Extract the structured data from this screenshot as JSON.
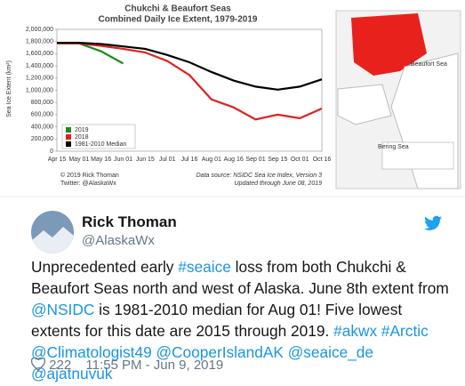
{
  "chart_data": {
    "type": "line",
    "title": "Chukchi & Beaufort Seas",
    "subtitle": "Combined Daily Ice Extent, 1979-2019",
    "y_label": "Sea Ice Extent (km²)",
    "categories": [
      "Apr 15",
      "May 01",
      "May 16",
      "Jun 01",
      "Jun 15",
      "Jul 01",
      "Jul 16",
      "Aug 01",
      "Aug 16",
      "Sep 01",
      "Sep 15",
      "Oct 01",
      "Oct 16"
    ],
    "series": [
      {
        "name": "2019",
        "color": "#1e8a1e",
        "values": [
          1770000,
          1770000,
          1640000,
          1440000,
          null,
          null,
          null,
          null,
          null,
          null,
          null,
          null,
          null
        ]
      },
      {
        "name": "2018",
        "color": "#e02020",
        "values": [
          1770000,
          1770000,
          1730000,
          1680000,
          1620000,
          1480000,
          1250000,
          850000,
          720000,
          520000,
          600000,
          540000,
          700000
        ]
      },
      {
        "name": "1981-2010 Median",
        "color": "#000000",
        "values": [
          1780000,
          1780000,
          1760000,
          1720000,
          1680000,
          1580000,
          1460000,
          1300000,
          1160000,
          1060000,
          1010000,
          1060000,
          1180000
        ]
      }
    ],
    "ylim": [
      0,
      2000000
    ],
    "yticks": [
      0,
      {
        "value": 200000,
        "label": "200,000"
      },
      {
        "value": 400000,
        "label": "400,000"
      },
      {
        "value": 600000,
        "label": "600,000"
      },
      {
        "value": 800000,
        "label": "800,000"
      },
      {
        "value": 1000000,
        "label": "1,000,000"
      },
      {
        "value": 1200000,
        "label": "1,200,000"
      },
      {
        "value": 1400000,
        "label": "1,400,000"
      },
      {
        "value": 1600000,
        "label": "1,600,000"
      },
      {
        "value": 1800000,
        "label": "1,800,000"
      },
      {
        "value": 2000000,
        "label": "2,000,000"
      }
    ],
    "credit": [
      "© 2019 Rick Thoman",
      "Twitter: @AlaskaWx"
    ],
    "source": [
      "Data source: NSIDC Sea Ice Index, Version 3",
      "Updated through June 08, 2019"
    ]
  },
  "map": {
    "labels": [
      "Beaufort Sea",
      "Bering Sea"
    ]
  },
  "tweet": {
    "name": "Rick Thoman",
    "handle": "@AlaskaWx",
    "body": [
      {
        "text": "Unprecedented early ",
        "link": false
      },
      {
        "text": "#seaice",
        "link": true
      },
      {
        "text": " loss from both Chukchi & Beaufort Seas north and west of Alaska. June 8th extent from ",
        "link": false
      },
      {
        "text": "@NSIDC",
        "link": true
      },
      {
        "text": " is 1981-2010 median for Aug 01! Five lowest extents for this date are 2015 through 2019. ",
        "link": false
      },
      {
        "text": "#akwx",
        "link": true
      },
      {
        "text": " ",
        "link": false
      },
      {
        "text": "#Arctic",
        "link": true
      },
      {
        "text": " ",
        "link": false
      },
      {
        "text": "@Climatologist49",
        "link": true
      },
      {
        "text": " ",
        "link": false
      },
      {
        "text": "@CooperIslandAK",
        "link": true
      },
      {
        "text": " ",
        "link": false
      },
      {
        "text": "@seaice_de",
        "link": true
      },
      {
        "text": " ",
        "link": false
      },
      {
        "text": "@ajatnuvuk",
        "link": true
      }
    ],
    "likes": "222",
    "time": "11:55 PM - Jun 9, 2019"
  }
}
